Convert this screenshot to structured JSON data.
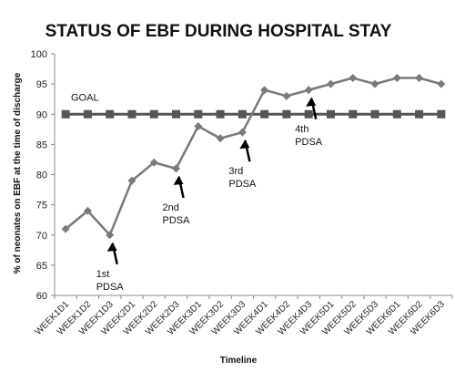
{
  "chart_data": {
    "type": "line",
    "title": "STATUS OF EBF DURING HOSPITAL STAY",
    "xlabel": "Timeline",
    "ylabel": "% of neonates on EBF at the time of discharge",
    "ylim": [
      60,
      100
    ],
    "yticks": [
      60,
      65,
      70,
      75,
      80,
      85,
      90,
      95,
      100
    ],
    "grid": false,
    "categories": [
      "WEEK1D1",
      "WEEK1D2",
      "WEEK1D3",
      "WEEK2D1",
      "WEEK2D2",
      "WEEK2D3",
      "WEEK3D1",
      "WEEK3D2",
      "WEEK3D3",
      "WEEK4D1",
      "WEEK4D2",
      "WEEK4D3",
      "WEEK5D1",
      "WEEK5D2",
      "WEEK5D3",
      "WEEK6D1",
      "WEEK6D2",
      "WEEK6D3"
    ],
    "series": [
      {
        "values": [
          71,
          74,
          70,
          79,
          82,
          81,
          88,
          86,
          87,
          94,
          93,
          94,
          95,
          96,
          95,
          96,
          96,
          95
        ],
        "color": "#7a7a7a",
        "marker": "diamond"
      },
      {
        "name": "GOAL",
        "values": [
          90,
          90,
          90,
          90,
          90,
          90,
          90,
          90,
          90,
          90,
          90,
          90,
          90,
          90,
          90,
          90,
          90,
          90
        ],
        "color": "#555555",
        "marker": "square"
      }
    ],
    "annotations": [
      {
        "lines": [
          "1st",
          "PDSA"
        ],
        "category_index": 2,
        "value": 70
      },
      {
        "lines": [
          "2nd",
          "PDSA"
        ],
        "category_index": 5,
        "value": 81
      },
      {
        "lines": [
          "3rd",
          "PDSA"
        ],
        "category_index": 8,
        "value": 87
      },
      {
        "lines": [
          "4th",
          "PDSA"
        ],
        "category_index": 11,
        "value": 94
      }
    ]
  }
}
